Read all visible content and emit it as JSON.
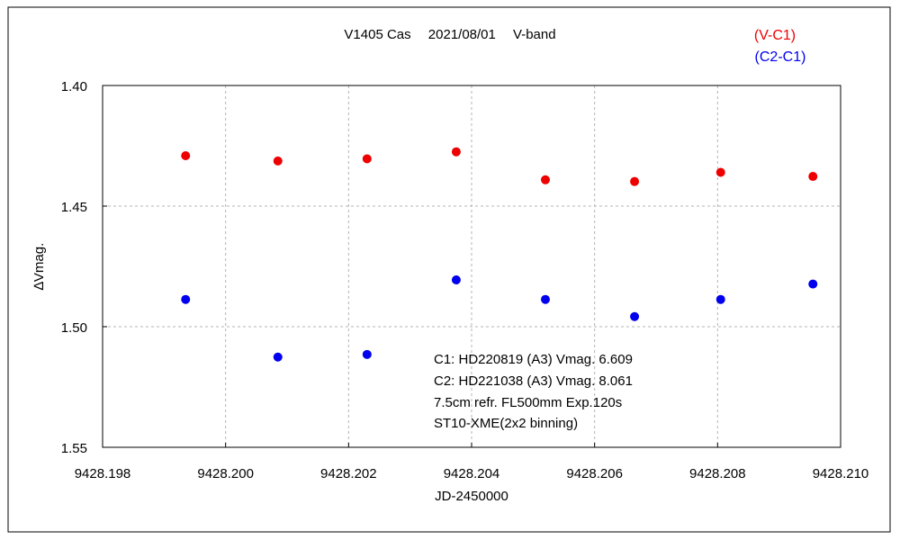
{
  "chart_data": {
    "type": "scatter",
    "title": "V1405 Cas　 2021/08/01　 V-band",
    "xlabel": "JD-2450000",
    "ylabel": "∆Vmag.",
    "xlim": [
      9428.198,
      9428.21
    ],
    "ylim": [
      1.4,
      1.55
    ],
    "y_inverted": true,
    "x_ticks": [
      "9428.198",
      "9428.200",
      "9428.202",
      "9428.204",
      "9428.206",
      "9428.208",
      "9428.210"
    ],
    "x_tick_values": [
      9428.198,
      9428.2,
      9428.202,
      9428.204,
      9428.206,
      9428.208,
      9428.21
    ],
    "y_ticks": [
      "1.40",
      "1.45",
      "1.50",
      "1.55"
    ],
    "y_tick_values": [
      1.4,
      1.45,
      1.5,
      1.55
    ],
    "grid": true,
    "legend_position": "top-right",
    "series": [
      {
        "name": "(V-C1)",
        "color": "#ee0000",
        "points": [
          [
            9428.19935,
            1.4291
          ],
          [
            9428.20085,
            1.4313
          ],
          [
            9428.2023,
            1.4304
          ],
          [
            9428.20375,
            1.4275
          ],
          [
            9428.2052,
            1.4391
          ],
          [
            9428.20665,
            1.4398
          ],
          [
            9428.20805,
            1.436
          ],
          [
            9428.20955,
            1.4377
          ]
        ]
      },
      {
        "name": "(C2-C1)",
        "color": "#0000ee",
        "points": [
          [
            9428.19935,
            1.4887
          ],
          [
            9428.20085,
            1.5126
          ],
          [
            9428.2023,
            1.5115
          ],
          [
            9428.20375,
            1.4806
          ],
          [
            9428.2052,
            1.4887
          ],
          [
            9428.20665,
            1.4958
          ],
          [
            9428.20805,
            1.4887
          ],
          [
            9428.20955,
            1.4823
          ]
        ]
      }
    ],
    "annotations": [
      "C1: HD220819 (A3) Vmag. 6.609",
      "C2: HD221038 (A3) Vmag. 8.061",
      "7.5cm refr. FL500mm Exp.120s",
      "ST10-XME(2x2 binning)"
    ]
  }
}
